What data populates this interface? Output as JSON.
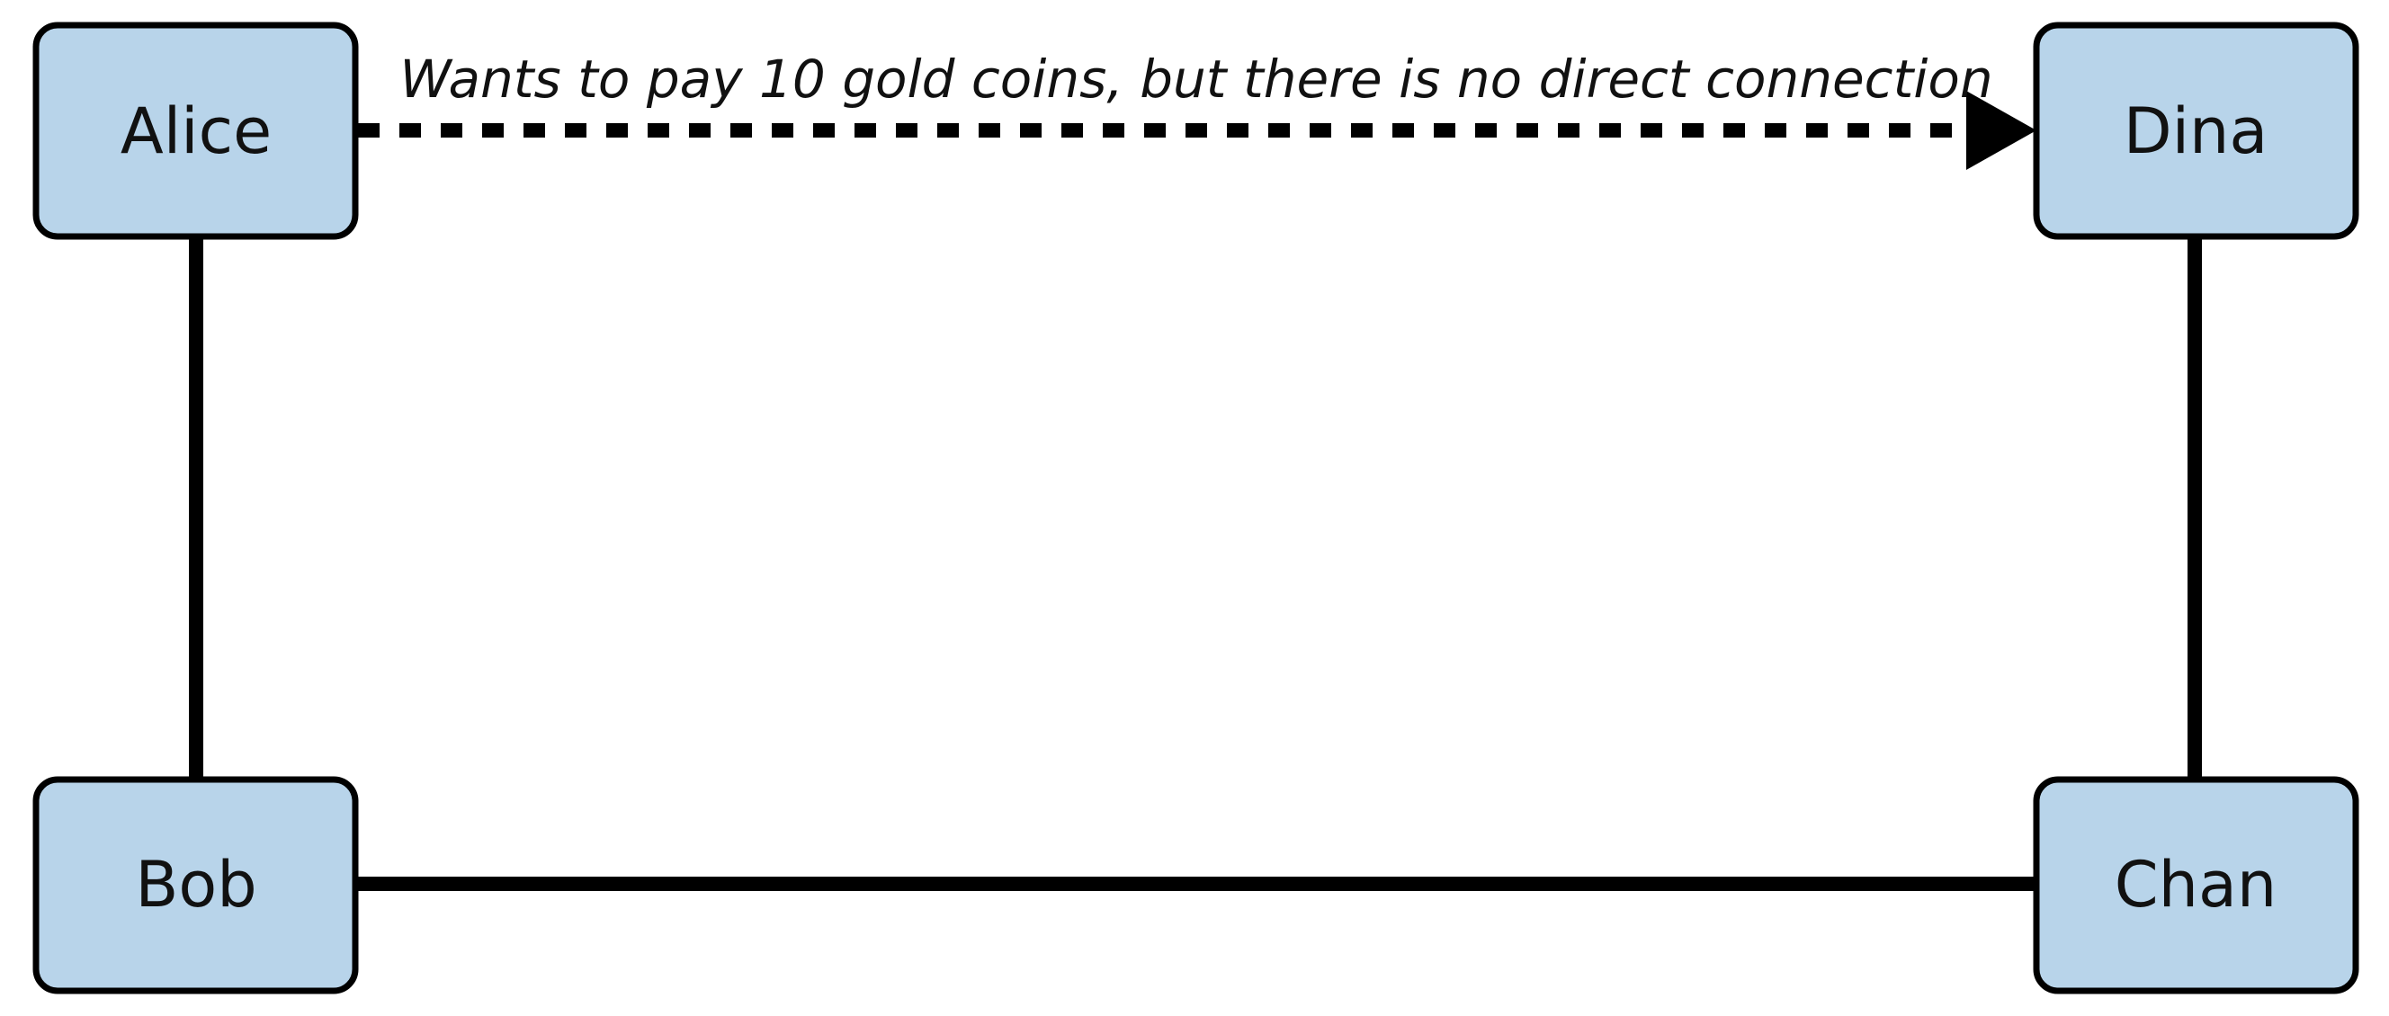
{
  "nodes": {
    "alice": {
      "label": "Alice"
    },
    "dina": {
      "label": "Dina"
    },
    "bob": {
      "label": "Bob"
    },
    "chan": {
      "label": "Chan"
    }
  },
  "edges": {
    "alice_dina": {
      "label": "Wants to pay 10 gold coins, but there is no direct connection",
      "style": "dashed",
      "arrow": "end"
    },
    "alice_bob": {
      "style": "solid"
    },
    "bob_chan": {
      "style": "solid"
    },
    "chan_dina": {
      "style": "solid"
    }
  },
  "colors": {
    "node_fill": "#b8d4ea",
    "stroke": "#000000",
    "text": "#111111",
    "background": "#ffffff"
  }
}
